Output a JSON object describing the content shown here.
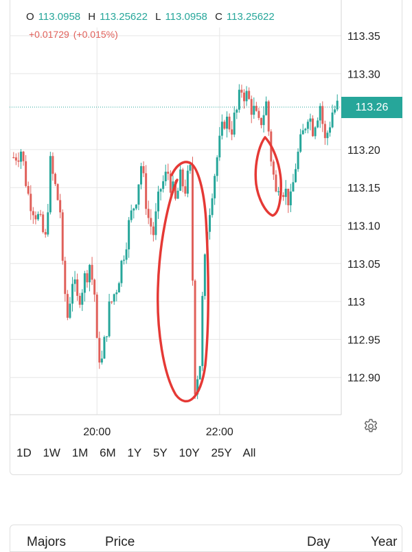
{
  "ohlc": {
    "o_label": "O",
    "o_value": "113.0958",
    "h_label": "H",
    "h_value": "113.25622",
    "l_label": "L",
    "l_value": "113.0958",
    "c_label": "C",
    "c_value": "113.25622",
    "change": "+0.01729",
    "change_pct": "(+0.015%)"
  },
  "last_price_label": "113.26",
  "time_ranges": [
    "1D",
    "1W",
    "1M",
    "6M",
    "1Y",
    "5Y",
    "10Y",
    "25Y",
    "All"
  ],
  "table_header": {
    "col1": "Majors",
    "col2": "Price",
    "col3": "Day",
    "col4": "Year"
  },
  "colors": {
    "up": "#26a69a",
    "down": "#e0605a",
    "annotation": "#e53935",
    "grid": "#e6e6e6"
  },
  "chart_data": {
    "type": "candlestick",
    "y_ticks": [
      {
        "label": "113.35",
        "value": 113.35
      },
      {
        "label": "113.30",
        "value": 113.3
      },
      {
        "label": "113.20",
        "value": 113.2
      },
      {
        "label": "113.15",
        "value": 113.15
      },
      {
        "label": "113.10",
        "value": 113.1
      },
      {
        "label": "113.05",
        "value": 113.05
      },
      {
        "label": "113",
        "value": 113.0
      },
      {
        "label": "112.95",
        "value": 112.95
      },
      {
        "label": "112.90",
        "value": 112.9
      }
    ],
    "ylim": [
      112.85,
      113.39
    ],
    "x_ticks": [
      {
        "label": "20:00",
        "slot": 34
      },
      {
        "label": "22:00",
        "slot": 84
      }
    ],
    "last_price": 113.256,
    "path_points": [
      [
        0,
        113.19
      ],
      [
        3,
        113.2
      ],
      [
        6,
        113.14
      ],
      [
        10,
        113.11
      ],
      [
        13,
        113.08
      ],
      [
        15,
        113.18
      ],
      [
        19,
        113.12
      ],
      [
        20,
        113.04
      ],
      [
        22,
        112.98
      ],
      [
        24,
        113.03
      ],
      [
        26,
        113.0
      ],
      [
        28,
        113.02
      ],
      [
        31,
        113.05
      ],
      [
        33,
        113.01
      ],
      [
        34,
        112.94
      ],
      [
        36,
        112.92
      ],
      [
        39,
        112.99
      ],
      [
        42,
        113.02
      ],
      [
        44,
        113.05
      ],
      [
        47,
        113.1
      ],
      [
        50,
        113.14
      ],
      [
        52,
        113.18
      ],
      [
        55,
        113.11
      ],
      [
        57,
        113.09
      ],
      [
        60,
        113.15
      ],
      [
        63,
        113.17
      ],
      [
        66,
        113.13
      ],
      [
        68,
        113.16
      ],
      [
        70,
        113.15
      ],
      [
        72,
        113.17
      ],
      [
        74,
        112.89
      ],
      [
        76,
        112.92
      ],
      [
        77,
        113.0
      ],
      [
        79,
        113.1
      ],
      [
        81,
        113.15
      ],
      [
        83,
        113.19
      ],
      [
        86,
        113.24
      ],
      [
        89,
        113.23
      ],
      [
        91,
        113.25
      ],
      [
        93,
        113.28
      ],
      [
        95,
        113.27
      ],
      [
        98,
        113.25
      ],
      [
        100,
        113.23
      ],
      [
        103,
        113.26
      ],
      [
        105,
        113.19
      ],
      [
        107,
        113.14
      ],
      [
        108,
        113.16
      ],
      [
        110,
        113.15
      ],
      [
        113,
        113.13
      ],
      [
        115,
        113.18
      ],
      [
        118,
        113.22
      ],
      [
        120,
        113.25
      ],
      [
        122,
        113.23
      ],
      [
        125,
        113.26
      ],
      [
        127,
        113.21
      ],
      [
        130,
        113.25
      ],
      [
        132,
        113.256
      ]
    ]
  }
}
